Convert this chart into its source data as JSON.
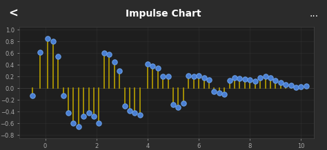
{
  "title": "Impulse Chart",
  "title_color": "#ffffff",
  "title_bg_color": "#5cb85c",
  "background_color": "#2b2b2b",
  "plot_bg_color": "#1e1e1e",
  "grid_color": "#3a3a3a",
  "stem_color": "#b8a000",
  "marker_color": "#4a7fd4",
  "marker_edge_color": "#6a9fe4",
  "xlim": [
    -1,
    10.5
  ],
  "ylim": [
    -0.85,
    1.05
  ],
  "xticks": [
    0,
    2,
    4,
    6,
    8,
    10
  ],
  "yticks": [
    -0.8,
    -0.6,
    -0.4,
    -0.2,
    0,
    0.2,
    0.4,
    0.6,
    0.8,
    1.0
  ],
  "x": [
    -0.5,
    -0.2,
    0.1,
    0.3,
    0.5,
    0.7,
    0.9,
    1.1,
    1.3,
    1.5,
    1.7,
    1.9,
    2.1,
    2.3,
    2.5,
    2.7,
    2.9,
    3.1,
    3.3,
    3.5,
    3.7,
    4.0,
    4.2,
    4.4,
    4.6,
    4.8,
    5.0,
    5.2,
    5.4,
    5.6,
    5.8,
    6.0,
    6.2,
    6.4,
    6.6,
    6.8,
    7.0,
    7.2,
    7.4,
    7.6,
    7.8,
    8.0,
    8.2,
    8.4,
    8.6,
    8.8,
    9.0,
    9.2,
    9.4,
    9.6,
    9.8,
    10.0,
    10.2
  ],
  "y": [
    -0.12,
    0.62,
    0.85,
    0.8,
    0.55,
    -0.12,
    -0.42,
    -0.6,
    -0.65,
    -0.48,
    -0.42,
    -0.48,
    -0.6,
    0.6,
    0.58,
    0.45,
    0.3,
    -0.3,
    -0.38,
    -0.42,
    -0.45,
    0.42,
    0.38,
    0.35,
    0.2,
    0.2,
    -0.28,
    -0.32,
    -0.25,
    0.22,
    0.2,
    0.22,
    0.18,
    0.15,
    -0.06,
    -0.08,
    -0.1,
    0.14,
    0.18,
    0.17,
    0.16,
    0.15,
    0.12,
    0.18,
    0.2,
    0.18,
    0.14,
    0.1,
    0.06,
    0.05,
    0.02,
    0.03,
    0.04
  ]
}
